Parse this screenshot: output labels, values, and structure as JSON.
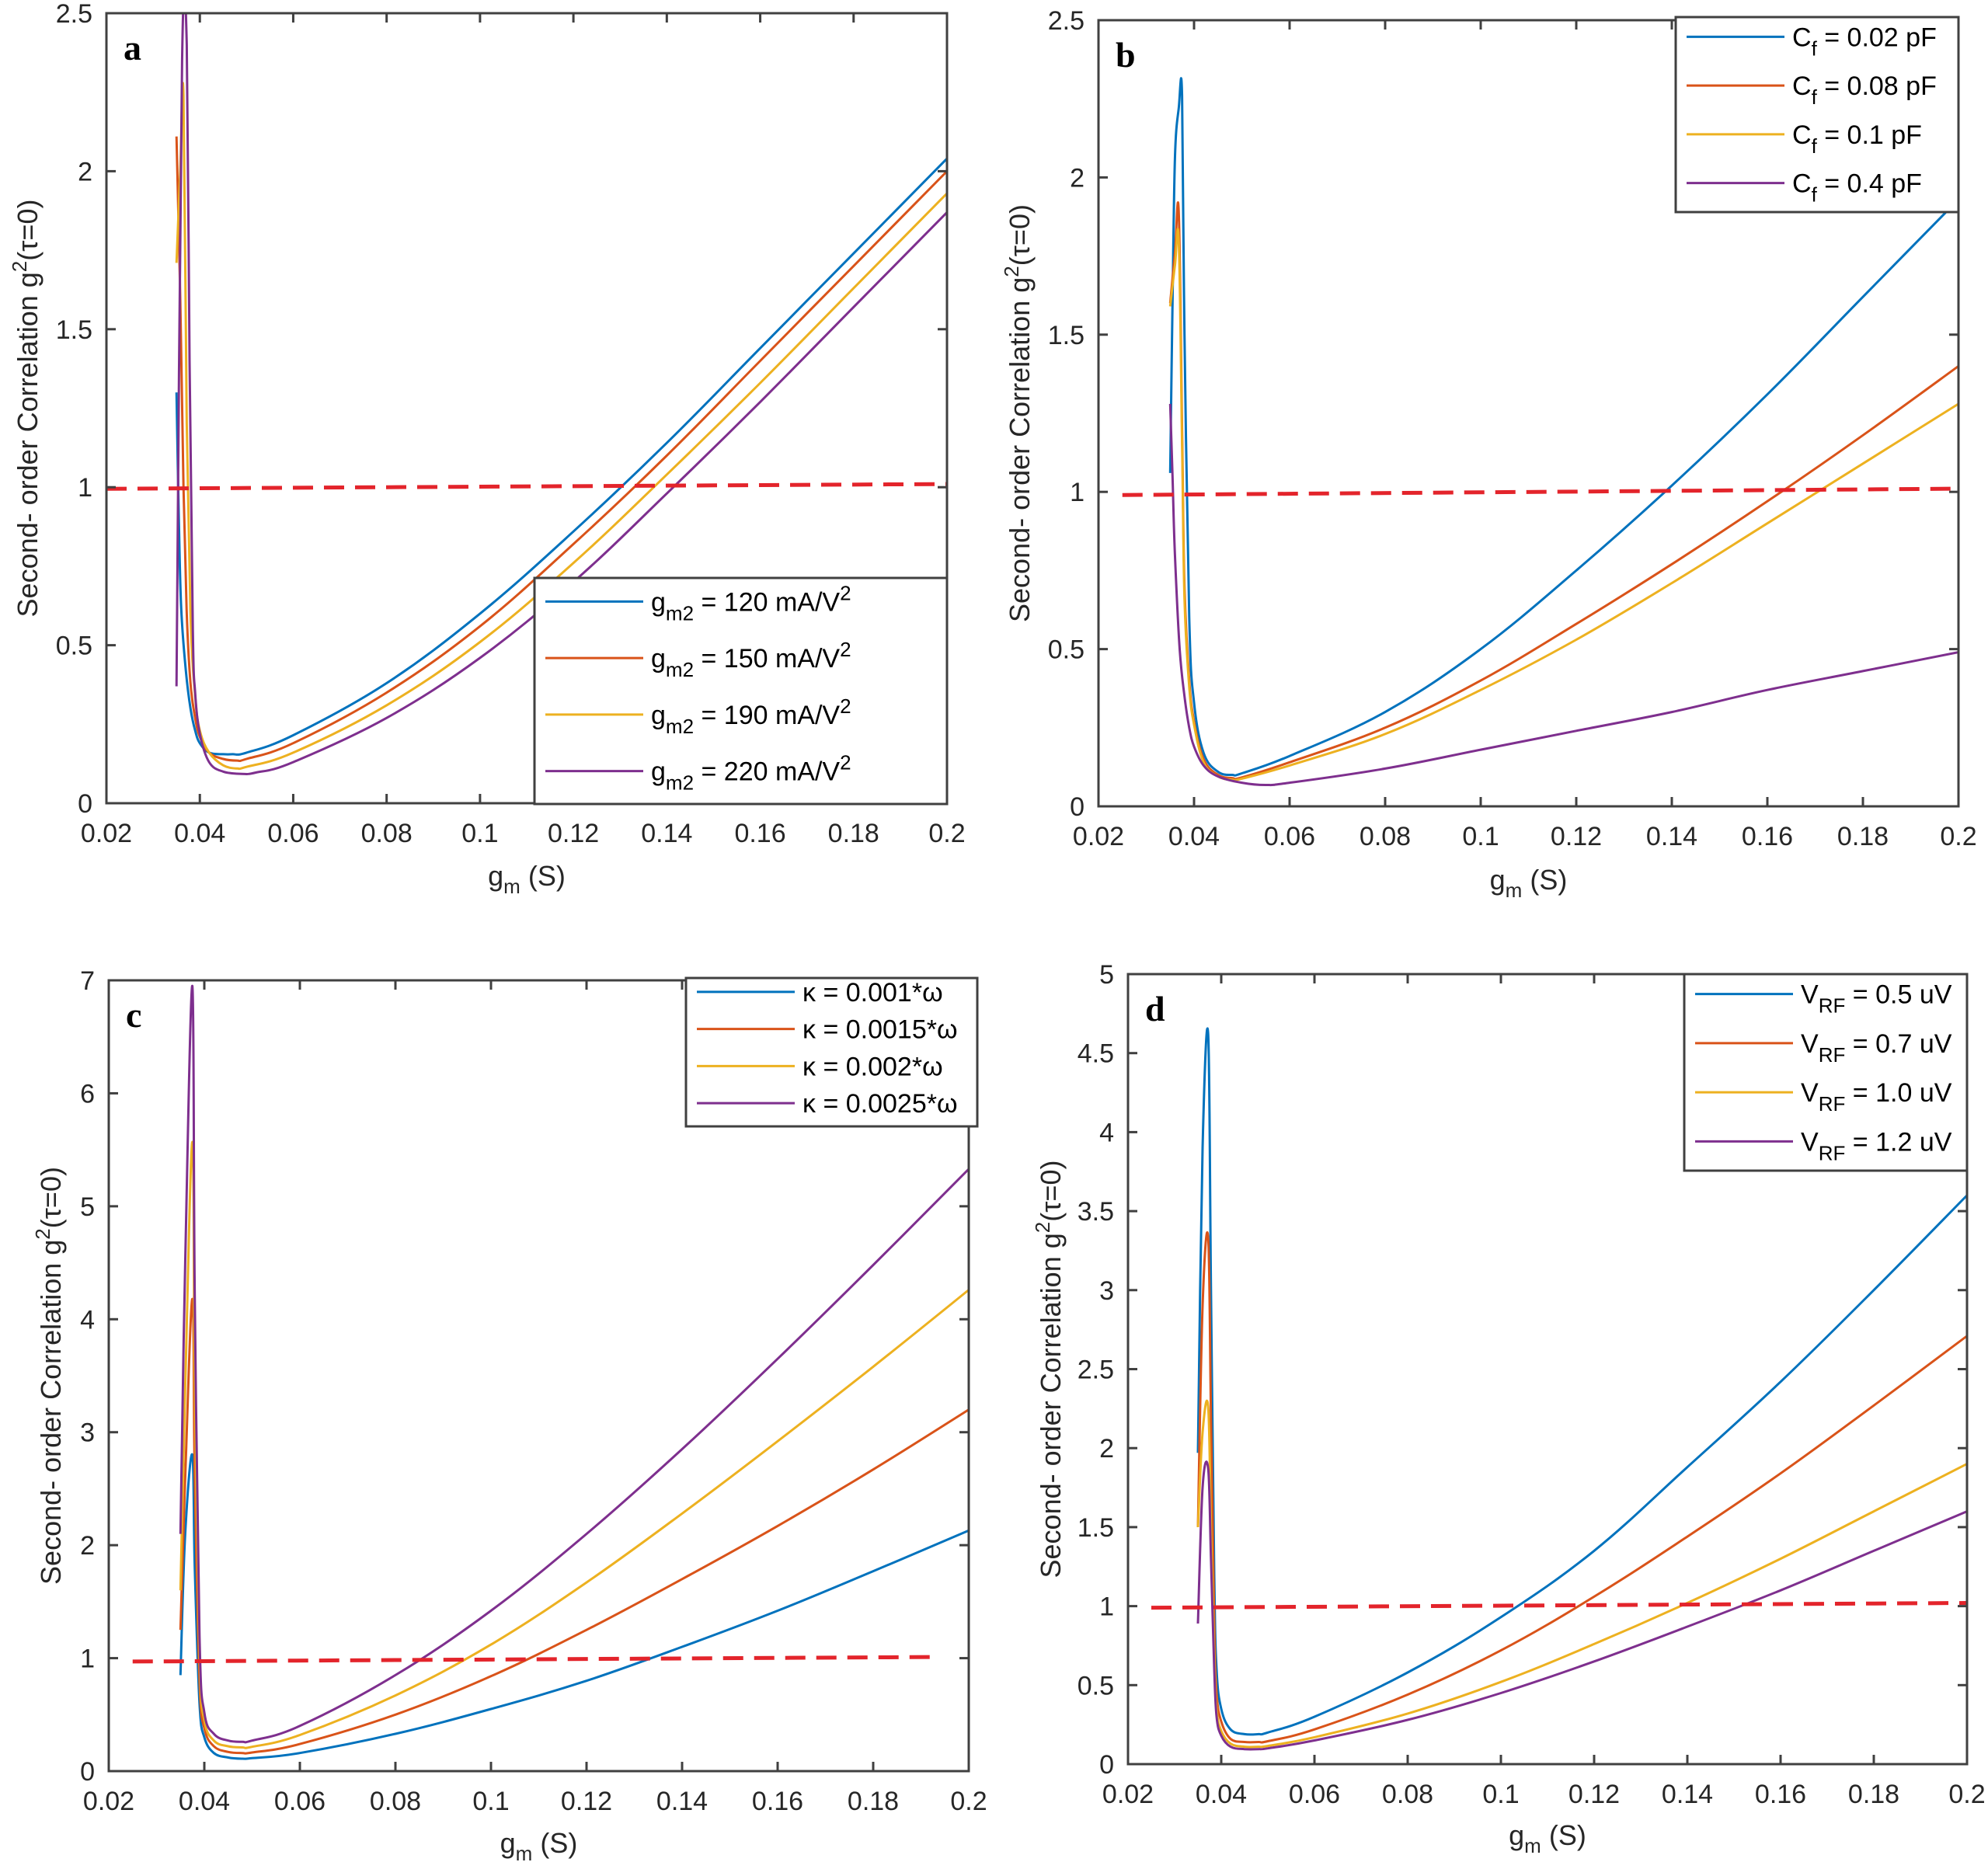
{
  "figure": {
    "panels_count": 4
  },
  "chart_data": [
    {
      "panel": "a",
      "type": "line",
      "xlabel": "g",
      "xlabel_sub": "m",
      "xlabel_suffix": " (S)",
      "ylabel": "Second- order Correlation g",
      "ylabel_sup": "2",
      "ylabel_suffix": "(τ=0)",
      "xlim": [
        0.02,
        0.2
      ],
      "ylim": [
        0,
        2.5
      ],
      "xticks": [
        0.02,
        0.04,
        0.06,
        0.08,
        0.1,
        0.12,
        0.14,
        0.16,
        0.18,
        0.2
      ],
      "xtick_labels": [
        "0.02",
        "0.04",
        "0.06",
        "0.08",
        "0.1",
        "0.12",
        "0.14",
        "0.16",
        "0.18",
        "0.2"
      ],
      "yticks": [
        0,
        0.5,
        1,
        1.5,
        2,
        2.5
      ],
      "ytick_labels": [
        "0",
        "0.5",
        "1",
        "1.5",
        "2",
        "2.5"
      ],
      "legend_position": "bottom-right",
      "reference_line": {
        "y_start": 0.995,
        "y_end": 1.01,
        "x_start": 0.02,
        "x_end": 0.2,
        "style": "dashed",
        "color": "#e3242b"
      },
      "series": [
        {
          "name": "g",
          "name_sub": "m2",
          "name_rest": " = 120 mA/V",
          "name_sup": "2",
          "color": "#0072bd",
          "x": [
            0.035,
            0.0355,
            0.036,
            0.037,
            0.038,
            0.039,
            0.04,
            0.042,
            0.045,
            0.047,
            0.05,
            0.06,
            0.08,
            0.1,
            0.12,
            0.14,
            0.16,
            0.18,
            0.2
          ],
          "y": [
            1.3,
            0.9,
            0.62,
            0.42,
            0.3,
            0.23,
            0.19,
            0.16,
            0.155,
            0.155,
            0.16,
            0.215,
            0.38,
            0.6,
            0.86,
            1.14,
            1.44,
            1.74,
            2.04
          ]
        },
        {
          "name": "g",
          "name_sub": "m2",
          "name_rest": " = 150 mA/V",
          "name_sup": "2",
          "color": "#d95319",
          "x": [
            0.035,
            0.0358,
            0.0365,
            0.0372,
            0.038,
            0.039,
            0.04,
            0.042,
            0.045,
            0.048,
            0.05,
            0.06,
            0.08,
            0.1,
            0.12,
            0.14,
            0.16,
            0.18,
            0.2
          ],
          "y": [
            2.11,
            1.6,
            1.0,
            0.6,
            0.38,
            0.27,
            0.21,
            0.16,
            0.14,
            0.135,
            0.14,
            0.19,
            0.35,
            0.56,
            0.82,
            1.1,
            1.4,
            1.7,
            2.0
          ]
        },
        {
          "name": "g",
          "name_sub": "m2",
          "name_rest": " = 190 mA/V",
          "name_sup": "2",
          "color": "#edb120",
          "x": [
            0.035,
            0.0358,
            0.0365,
            0.0372,
            0.038,
            0.039,
            0.04,
            0.042,
            0.045,
            0.048,
            0.05,
            0.06,
            0.08,
            0.1,
            0.12,
            0.14,
            0.16,
            0.18,
            0.2
          ],
          "y": [
            1.71,
            2.0,
            2.24,
            1.2,
            0.6,
            0.34,
            0.23,
            0.16,
            0.12,
            0.11,
            0.115,
            0.16,
            0.31,
            0.51,
            0.76,
            1.04,
            1.33,
            1.63,
            1.93
          ]
        },
        {
          "name": "g",
          "name_sub": "m2",
          "name_rest": " = 220 mA/V",
          "name_sup": "2",
          "color": "#7e2f8e",
          "x": [
            0.035,
            0.0362,
            0.0372,
            0.0378,
            0.0385,
            0.039,
            0.04,
            0.042,
            0.045,
            0.049,
            0.052,
            0.06,
            0.08,
            0.1,
            0.12,
            0.14,
            0.16,
            0.18,
            0.2
          ],
          "y": [
            0.37,
            2.35,
            2.4,
            1.4,
            0.55,
            0.35,
            0.22,
            0.13,
            0.1,
            0.093,
            0.097,
            0.13,
            0.27,
            0.46,
            0.7,
            0.98,
            1.27,
            1.57,
            1.87
          ]
        }
      ]
    },
    {
      "panel": "b",
      "type": "line",
      "xlabel": "g",
      "xlabel_sub": "m",
      "xlabel_suffix": " (S)",
      "ylabel": "Second- order Correlation g",
      "ylabel_sup": "2",
      "ylabel_suffix": "(τ=0)",
      "xlim": [
        0.02,
        0.2
      ],
      "ylim": [
        0,
        2.5
      ],
      "xticks": [
        0.02,
        0.04,
        0.06,
        0.08,
        0.1,
        0.12,
        0.14,
        0.16,
        0.18,
        0.2
      ],
      "xtick_labels": [
        "0.02",
        "0.04",
        "0.06",
        "0.08",
        "0.1",
        "0.12",
        "0.14",
        "0.16",
        "0.18",
        "0.2"
      ],
      "yticks": [
        0,
        0.5,
        1,
        1.5,
        2,
        2.5
      ],
      "ytick_labels": [
        "0",
        "0.5",
        "1",
        "1.5",
        "2",
        "2.5"
      ],
      "legend_position": "top-right",
      "reference_line": {
        "y_start": 0.99,
        "y_end": 1.01,
        "x_start": 0.025,
        "x_end": 0.199,
        "style": "dashed",
        "color": "#e3242b"
      },
      "series": [
        {
          "name": "C",
          "name_sub": "f",
          "name_rest": " = 0.02 pF",
          "name_sup": "",
          "color": "#0072bd",
          "x": [
            0.035,
            0.0355,
            0.036,
            0.0368,
            0.0375,
            0.038,
            0.039,
            0.04,
            0.042,
            0.045,
            0.048,
            0.05,
            0.06,
            0.08,
            0.1,
            0.12,
            0.14,
            0.16,
            0.18,
            0.2
          ],
          "y": [
            1.06,
            1.6,
            2.06,
            2.22,
            2.26,
            1.5,
            0.6,
            0.33,
            0.17,
            0.11,
            0.1,
            0.105,
            0.16,
            0.3,
            0.5,
            0.75,
            1.02,
            1.31,
            1.62,
            1.93
          ]
        },
        {
          "name": "C",
          "name_sub": "f",
          "name_rest": " = 0.08 pF",
          "name_sup": "",
          "color": "#d95319",
          "x": [
            0.035,
            0.036,
            0.0368,
            0.0375,
            0.038,
            0.039,
            0.04,
            0.042,
            0.045,
            0.048,
            0.05,
            0.06,
            0.08,
            0.1,
            0.12,
            0.14,
            0.16,
            0.18,
            0.2
          ],
          "y": [
            1.6,
            1.76,
            1.89,
            1.2,
            0.7,
            0.4,
            0.27,
            0.15,
            0.1,
            0.09,
            0.092,
            0.14,
            0.25,
            0.4,
            0.58,
            0.77,
            0.97,
            1.18,
            1.4
          ]
        },
        {
          "name": "C",
          "name_sub": "f",
          "name_rest": " = 0.1 pF",
          "name_sup": "",
          "color": "#edb120",
          "x": [
            0.035,
            0.036,
            0.0368,
            0.0375,
            0.038,
            0.039,
            0.04,
            0.042,
            0.045,
            0.048,
            0.05,
            0.06,
            0.08,
            0.1,
            0.12,
            0.14,
            0.16,
            0.18,
            0.2
          ],
          "y": [
            1.59,
            1.72,
            1.8,
            1.15,
            0.66,
            0.38,
            0.26,
            0.14,
            0.095,
            0.085,
            0.088,
            0.13,
            0.23,
            0.37,
            0.53,
            0.71,
            0.9,
            1.09,
            1.28
          ]
        },
        {
          "name": "C",
          "name_sub": "f",
          "name_rest": " = 0.4 pF",
          "name_sup": "",
          "color": "#7e2f8e",
          "x": [
            0.035,
            0.0355,
            0.036,
            0.037,
            0.038,
            0.039,
            0.04,
            0.042,
            0.045,
            0.05,
            0.055,
            0.06,
            0.08,
            0.1,
            0.12,
            0.14,
            0.16,
            0.18,
            0.2
          ],
          "y": [
            1.28,
            1.05,
            0.8,
            0.5,
            0.35,
            0.25,
            0.19,
            0.13,
            0.095,
            0.075,
            0.068,
            0.075,
            0.12,
            0.18,
            0.24,
            0.3,
            0.37,
            0.43,
            0.49
          ]
        }
      ]
    },
    {
      "panel": "c",
      "type": "line",
      "xlabel": "g",
      "xlabel_sub": "m",
      "xlabel_suffix": " (S)",
      "ylabel": "Second- order Correlation g",
      "ylabel_sup": "2",
      "ylabel_suffix": "(τ=0)",
      "xlim": [
        0.02,
        0.2
      ],
      "ylim": [
        0,
        7
      ],
      "xticks": [
        0.02,
        0.04,
        0.06,
        0.08,
        0.1,
        0.12,
        0.14,
        0.16,
        0.18,
        0.2
      ],
      "xtick_labels": [
        "0.02",
        "0.04",
        "0.06",
        "0.08",
        "0.1",
        "0.12",
        "0.14",
        "0.16",
        "0.18",
        "0.2"
      ],
      "yticks": [
        0,
        1,
        2,
        3,
        4,
        5,
        6,
        7
      ],
      "ytick_labels": [
        "0",
        "1",
        "2",
        "3",
        "4",
        "5",
        "6",
        "7"
      ],
      "legend_position": "top-right",
      "reference_line": {
        "y_start": 0.97,
        "y_end": 1.01,
        "x_start": 0.025,
        "x_end": 0.193,
        "style": "dashed",
        "color": "#e3242b"
      },
      "series": [
        {
          "name": "κ = 0.001*ω",
          "color": "#0072bd",
          "x": [
            0.035,
            0.036,
            0.0375,
            0.038,
            0.039,
            0.04,
            0.042,
            0.045,
            0.048,
            0.05,
            0.06,
            0.08,
            0.1,
            0.12,
            0.14,
            0.16,
            0.18,
            0.2
          ],
          "y": [
            0.85,
            2.1,
            2.8,
            1.8,
            0.6,
            0.3,
            0.16,
            0.12,
            0.11,
            0.115,
            0.16,
            0.33,
            0.55,
            0.8,
            1.1,
            1.42,
            1.77,
            2.13
          ]
        },
        {
          "name": "κ = 0.0015*ω",
          "color": "#d95319",
          "x": [
            0.035,
            0.036,
            0.0375,
            0.038,
            0.039,
            0.04,
            0.042,
            0.045,
            0.048,
            0.05,
            0.06,
            0.08,
            0.1,
            0.12,
            0.14,
            0.16,
            0.18,
            0.2
          ],
          "y": [
            1.25,
            2.6,
            4.18,
            2.6,
            0.8,
            0.38,
            0.22,
            0.17,
            0.16,
            0.165,
            0.24,
            0.5,
            0.84,
            1.25,
            1.7,
            2.17,
            2.67,
            3.2
          ]
        },
        {
          "name": "κ = 0.002*ω",
          "color": "#edb120",
          "x": [
            0.035,
            0.036,
            0.0375,
            0.038,
            0.039,
            0.04,
            0.042,
            0.045,
            0.048,
            0.05,
            0.06,
            0.08,
            0.1,
            0.12,
            0.14,
            0.16,
            0.18,
            0.2
          ],
          "y": [
            1.6,
            3.4,
            5.57,
            3.4,
            1.0,
            0.45,
            0.27,
            0.22,
            0.21,
            0.215,
            0.32,
            0.67,
            1.12,
            1.67,
            2.28,
            2.92,
            3.58,
            4.26
          ]
        },
        {
          "name": "κ = 0.0025*ω",
          "color": "#7e2f8e",
          "x": [
            0.035,
            0.036,
            0.0375,
            0.038,
            0.039,
            0.04,
            0.042,
            0.045,
            0.048,
            0.05,
            0.06,
            0.08,
            0.1,
            0.12,
            0.14,
            0.16,
            0.18,
            0.2
          ],
          "y": [
            2.1,
            4.5,
            6.95,
            4.2,
            1.2,
            0.52,
            0.33,
            0.27,
            0.26,
            0.27,
            0.4,
            0.85,
            1.42,
            2.1,
            2.85,
            3.65,
            4.48,
            5.33
          ]
        }
      ]
    },
    {
      "panel": "d",
      "type": "line",
      "xlabel": "g",
      "xlabel_sub": "m",
      "xlabel_suffix": " (S)",
      "ylabel": "Second- order Correlation g",
      "ylabel_sup": "2",
      "ylabel_suffix": "(τ=0)",
      "xlim": [
        0.02,
        0.2
      ],
      "ylim": [
        0,
        5
      ],
      "xticks": [
        0.02,
        0.04,
        0.06,
        0.08,
        0.1,
        0.12,
        0.14,
        0.16,
        0.18,
        0.2
      ],
      "xtick_labels": [
        "0.02",
        "0.04",
        "0.06",
        "0.08",
        "0.1",
        "0.12",
        "0.14",
        "0.16",
        "0.18",
        "0.2"
      ],
      "yticks": [
        0,
        0.5,
        1,
        1.5,
        2,
        2.5,
        3,
        3.5,
        4,
        4.5,
        5
      ],
      "ytick_labels": [
        "0",
        "0.5",
        "1",
        "1.5",
        "2",
        "2.5",
        "3",
        "3.5",
        "4",
        "4.5",
        "5"
      ],
      "legend_position": "top-right",
      "reference_line": {
        "y_start": 0.99,
        "y_end": 1.02,
        "x_start": 0.025,
        "x_end": 0.2,
        "style": "dashed",
        "color": "#e3242b"
      },
      "series": [
        {
          "name": "V",
          "name_sub": "RF",
          "name_rest": " = 0.5 uV",
          "name_sup": "",
          "color": "#0072bd",
          "x": [
            0.035,
            0.036,
            0.0372,
            0.0378,
            0.0385,
            0.039,
            0.04,
            0.042,
            0.045,
            0.048,
            0.05,
            0.06,
            0.08,
            0.1,
            0.12,
            0.14,
            0.16,
            0.18,
            0.2
          ],
          "y": [
            1.97,
            3.9,
            4.62,
            3.0,
            1.2,
            0.6,
            0.35,
            0.22,
            0.19,
            0.19,
            0.2,
            0.3,
            0.58,
            0.93,
            1.35,
            1.88,
            2.42,
            3.0,
            3.6
          ]
        },
        {
          "name": "V",
          "name_sub": "RF",
          "name_rest": " = 0.7 uV",
          "name_sup": "",
          "color": "#d95319",
          "x": [
            0.035,
            0.036,
            0.0372,
            0.0378,
            0.0385,
            0.039,
            0.04,
            0.042,
            0.045,
            0.048,
            0.05,
            0.06,
            0.08,
            0.1,
            0.12,
            0.14,
            0.16,
            0.18,
            0.2
          ],
          "y": [
            1.5,
            2.9,
            3.33,
            2.2,
            0.9,
            0.45,
            0.27,
            0.16,
            0.14,
            0.14,
            0.145,
            0.22,
            0.44,
            0.72,
            1.06,
            1.44,
            1.84,
            2.27,
            2.71
          ]
        },
        {
          "name": "V",
          "name_sub": "RF",
          "name_rest": " = 1.0 uV",
          "name_sup": "",
          "color": "#edb120",
          "x": [
            0.035,
            0.036,
            0.0372,
            0.0378,
            0.0385,
            0.039,
            0.04,
            0.042,
            0.045,
            0.048,
            0.05,
            0.06,
            0.08,
            0.1,
            0.12,
            0.14,
            0.16,
            0.18,
            0.2
          ],
          "y": [
            1.5,
            2.1,
            2.26,
            1.5,
            0.7,
            0.35,
            0.21,
            0.13,
            0.11,
            0.11,
            0.115,
            0.17,
            0.32,
            0.52,
            0.76,
            1.02,
            1.3,
            1.6,
            1.9
          ]
        },
        {
          "name": "V",
          "name_sub": "RF",
          "name_rest": " = 1.2 uV",
          "name_sup": "",
          "color": "#7e2f8e",
          "x": [
            0.035,
            0.036,
            0.0372,
            0.0378,
            0.0385,
            0.039,
            0.04,
            0.042,
            0.045,
            0.048,
            0.05,
            0.06,
            0.08,
            0.1,
            0.12,
            0.14,
            0.16,
            0.18,
            0.2
          ],
          "y": [
            0.89,
            1.75,
            1.87,
            1.3,
            0.6,
            0.3,
            0.18,
            0.11,
            0.095,
            0.095,
            0.1,
            0.15,
            0.28,
            0.45,
            0.65,
            0.87,
            1.1,
            1.35,
            1.6
          ]
        }
      ]
    }
  ]
}
